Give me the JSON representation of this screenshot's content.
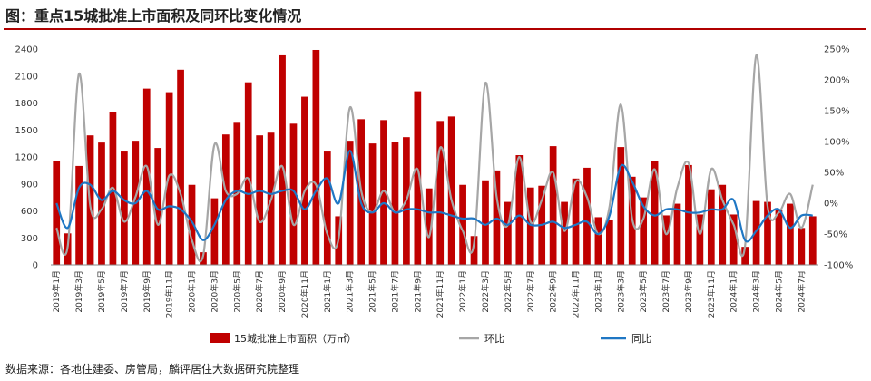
{
  "header": {
    "title": "图：重点15城批准上市面积及同环比变化情况"
  },
  "footer": {
    "source": "数据来源：各地住建委、房管局，麟评居住大数据研究院整理"
  },
  "colors": {
    "bar": "#c00000",
    "mom": "#a6a6a6",
    "yoy": "#1f77c4",
    "title_rule": "#b00000"
  },
  "chart_data": {
    "type": "bar",
    "title": "图：重点15城批准上市面积及同环比变化情况",
    "categories": [
      "2019年1月",
      "2019年2月",
      "2019年3月",
      "2019年4月",
      "2019年5月",
      "2019年6月",
      "2019年7月",
      "2019年8月",
      "2019年9月",
      "2019年10月",
      "2019年11月",
      "2019年12月",
      "2020年1月",
      "2020年2月",
      "2020年3月",
      "2020年4月",
      "2020年5月",
      "2020年6月",
      "2020年7月",
      "2020年8月",
      "2020年9月",
      "2020年10月",
      "2020年11月",
      "2020年12月",
      "2021年1月",
      "2021年2月",
      "2021年3月",
      "2021年4月",
      "2021年5月",
      "2021年6月",
      "2021年7月",
      "2021年8月",
      "2021年9月",
      "2021年10月",
      "2021年11月",
      "2021年12月",
      "2022年1月",
      "2022年2月",
      "2022年3月",
      "2022年4月",
      "2022年5月",
      "2022年6月",
      "2022年7月",
      "2022年8月",
      "2022年9月",
      "2022年10月",
      "2022年11月",
      "2022年12月",
      "2023年1月",
      "2023年2月",
      "2023年3月",
      "2023年4月",
      "2023年5月",
      "2023年6月",
      "2023年7月",
      "2023年8月",
      "2023年9月",
      "2023年10月",
      "2023年11月",
      "2023年12月",
      "2024年1月",
      "2024年2月",
      "2024年3月",
      "2024年4月",
      "2024年5月",
      "2024年6月",
      "2024年7月",
      "2024年8月"
    ],
    "tick_labels": [
      "2019年1月",
      "2019年3月",
      "2019年5月",
      "2019年7月",
      "2019年9月",
      "2019年11月",
      "2020年1月",
      "2020年3月",
      "2020年5月",
      "2020年7月",
      "2020年9月",
      "2020年11月",
      "2021年1月",
      "2021年3月",
      "2021年5月",
      "2021年7月",
      "2021年9月",
      "2021年11月",
      "2022年1月",
      "2022年3月",
      "2022年5月",
      "2022年7月",
      "2022年9月",
      "2022年11月",
      "2023年1月",
      "2023年3月",
      "2023年5月",
      "2023年7月",
      "2023年9月",
      "2023年11月",
      "2024年1月",
      "2024年3月",
      "2024年5月",
      "2024年7月"
    ],
    "y_left": {
      "min": 0,
      "max": 2400,
      "ticks": [
        0,
        300,
        600,
        900,
        1200,
        1500,
        1800,
        2100,
        2400
      ]
    },
    "y_right": {
      "min": -100,
      "max": 250,
      "ticks": [
        "-100%",
        "-50%",
        "0%",
        "50%",
        "100%",
        "150%",
        "200%",
        "250%"
      ],
      "tick_values": [
        -100,
        -50,
        0,
        50,
        100,
        150,
        200,
        250
      ]
    },
    "series": [
      {
        "name": "15城批准上市面积（万㎡）",
        "type": "bar",
        "axis": "left",
        "values": [
          1150,
          350,
          1100,
          1440,
          1360,
          1700,
          1260,
          1380,
          1960,
          1300,
          1920,
          2170,
          890,
          140,
          740,
          1450,
          1580,
          2030,
          1440,
          1470,
          2330,
          1570,
          1870,
          2390,
          1260,
          540,
          1380,
          1620,
          1350,
          1610,
          1370,
          1420,
          1930,
          850,
          1600,
          1650,
          890,
          320,
          940,
          1050,
          700,
          1220,
          860,
          880,
          1320,
          700,
          960,
          1080,
          530,
          500,
          1310,
          980,
          750,
          1150,
          550,
          680,
          1110,
          560,
          840,
          890,
          560,
          200,
          710,
          700,
          610,
          680,
          410,
          540
        ]
      },
      {
        "name": "环比",
        "type": "line",
        "axis": "right",
        "values": [
          -40,
          -70,
          210,
          -5,
          -10,
          25,
          -30,
          10,
          60,
          -35,
          45,
          15,
          -60,
          -85,
          95,
          20,
          15,
          40,
          -30,
          5,
          60,
          -35,
          20,
          30,
          -50,
          -57,
          155,
          20,
          -15,
          20,
          -15,
          5,
          55,
          -55,
          90,
          5,
          -45,
          -65,
          195,
          10,
          -35,
          75,
          -30,
          5,
          50,
          -45,
          35,
          10,
          -50,
          -5,
          160,
          -25,
          -25,
          55,
          -50,
          25,
          65,
          -50,
          55,
          5,
          -35,
          -70,
          240,
          -5,
          -15,
          15,
          -40,
          30
        ]
      },
      {
        "name": "同比",
        "type": "line",
        "axis": "right",
        "values": [
          0,
          -40,
          25,
          30,
          5,
          20,
          5,
          0,
          20,
          -10,
          -5,
          -10,
          -30,
          -60,
          -35,
          5,
          20,
          15,
          20,
          15,
          20,
          20,
          -10,
          20,
          40,
          0,
          85,
          0,
          -15,
          0,
          -15,
          -10,
          -10,
          -15,
          -15,
          -20,
          -25,
          -25,
          -35,
          -25,
          -35,
          -20,
          -35,
          -35,
          -30,
          -40,
          -35,
          -30,
          -50,
          -20,
          60,
          35,
          -5,
          -20,
          -10,
          -10,
          -15,
          -15,
          -10,
          -10,
          5,
          -60,
          -45,
          -20,
          -10,
          -40,
          -20,
          -20
        ]
      }
    ],
    "legend": [
      "15城批准上市面积（万㎡）",
      "环比",
      "同比"
    ],
    "legend_position": "bottom"
  }
}
